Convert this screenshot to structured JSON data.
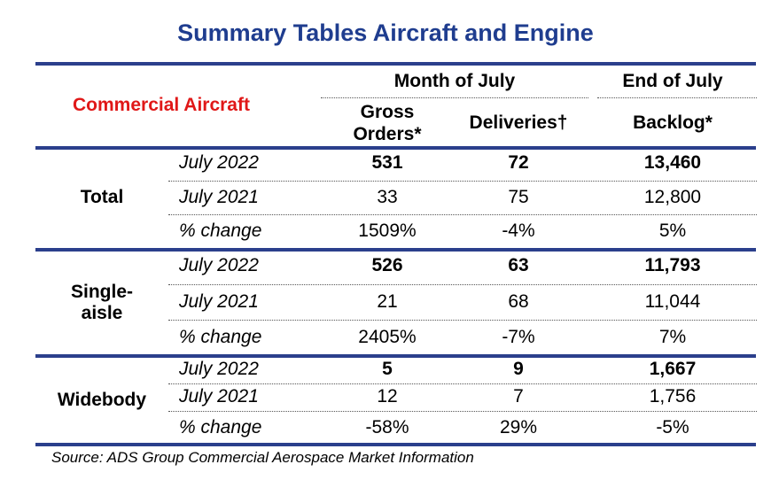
{
  "title": "Summary Tables Aircraft and Engine",
  "header": {
    "section_label": "Commercial Aircraft",
    "month_group": "Month of July",
    "end_group": "End of July",
    "col_gross_line1": "Gross",
    "col_gross_line2": "Orders*",
    "col_deliveries": "Deliveries†",
    "col_backlog": "Backlog*"
  },
  "groups": [
    {
      "label_line1": "Total",
      "label_line2": "",
      "rows": [
        {
          "period": "July 2022",
          "gross": "531",
          "deliveries": "72",
          "backlog": "13,460"
        },
        {
          "period": "July 2021",
          "gross": "33",
          "deliveries": "75",
          "backlog": "12,800"
        },
        {
          "period": "% change",
          "gross": "1509%",
          "deliveries": "-4%",
          "backlog": "5%"
        }
      ]
    },
    {
      "label_line1": "Single-",
      "label_line2": "aisle",
      "rows": [
        {
          "period": "July 2022",
          "gross": "526",
          "deliveries": "63",
          "backlog": "11,793"
        },
        {
          "period": "July 2021",
          "gross": "21",
          "deliveries": "68",
          "backlog": "11,044"
        },
        {
          "period": "% change",
          "gross": "2405%",
          "deliveries": "-7%",
          "backlog": "7%"
        }
      ]
    },
    {
      "label_line1": "Widebody",
      "label_line2": "",
      "rows": [
        {
          "period": "July 2022",
          "gross": "5",
          "deliveries": "9",
          "backlog": "1,667"
        },
        {
          "period": "July 2021",
          "gross": "12",
          "deliveries": "7",
          "backlog": "1,756"
        },
        {
          "period": "% change",
          "gross": "-58%",
          "deliveries": "29%",
          "backlog": "-5%"
        }
      ]
    }
  ],
  "source": "Source: ADS Group Commercial Aerospace Market Information"
}
